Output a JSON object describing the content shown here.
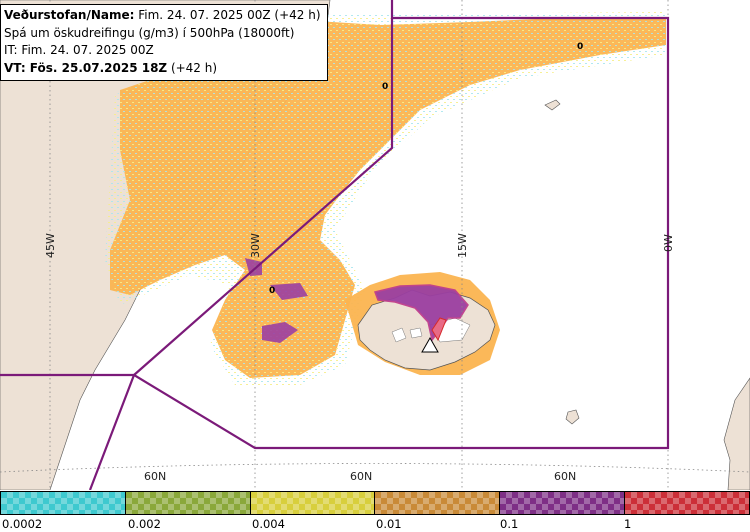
{
  "header": {
    "line1_bold": "Veðurstofan/Name:",
    "line1_rest": " Fim. 24. 07. 2025 00Z (+42 h)",
    "line2": "Spá um öskudreifingu (g/m3) í 500hPa (18000ft)",
    "line3": "IT: Fim. 24. 07. 2025 00Z",
    "line4_bold": "VT: Fös. 25.07.2025 18Z",
    "line4_rest": " (+42 h)"
  },
  "map": {
    "longitude_labels": [
      "45W",
      "30W",
      "15W",
      "0W"
    ],
    "latitude_labels": [
      "60N",
      "60N",
      "60N"
    ],
    "contour_labels": [
      "0",
      "0",
      "0"
    ],
    "colors": {
      "land": "#ede1d5",
      "sea": "#ffffff",
      "boundary": "#7b1a79",
      "ash_light": "#fbb450",
      "ash_mid": "#9b3fa1",
      "ash_high": "#d62a2a",
      "fringe_yellow": "#f6ee8a",
      "fringe_cyan": "#a9e6ee"
    },
    "volcano_marker": "volcano-triangle-icon"
  },
  "legend": {
    "ticks": [
      "0.0002",
      "0.002",
      "0.004",
      "0.01",
      "0.1",
      "1"
    ],
    "colors": [
      "#3ec9cf",
      "#8aa83a",
      "#d8cf3d",
      "#c98a37",
      "#7e2f86",
      "#cc2f38"
    ]
  }
}
